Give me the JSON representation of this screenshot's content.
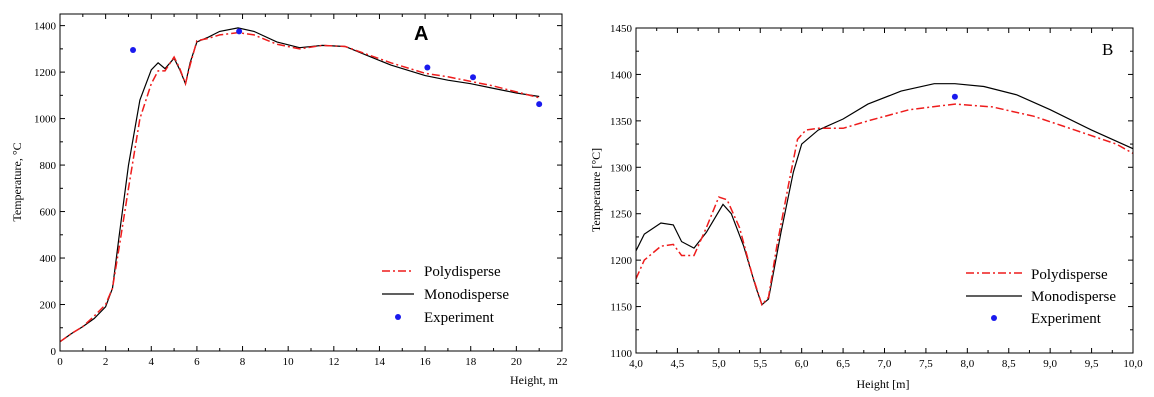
{
  "colors": {
    "polydisperse": "#ee1c1c",
    "monodisperse": "#000000",
    "experiment": "#1a1aee"
  },
  "chart_data": [
    {
      "type": "line",
      "panel_label": "A",
      "xlabel": "Height, m",
      "ylabel": "Temperature, °C",
      "xlim": [
        0,
        22
      ],
      "ylim": [
        0,
        1450
      ],
      "x_ticks": [
        "0",
        "2",
        "4",
        "6",
        "8",
        "10",
        "12",
        "14",
        "16",
        "18",
        "20",
        "22"
      ],
      "y_ticks": [
        "0",
        "200",
        "400",
        "600",
        "800",
        "1000",
        "1200",
        "1400"
      ],
      "legend_position": "bottom-right",
      "series": [
        {
          "name": "Polydisperse",
          "style": "dash-dot",
          "points": [
            [
              0,
              40
            ],
            [
              0.5,
              75
            ],
            [
              1,
              105
            ],
            [
              1.5,
              150
            ],
            [
              2,
              200
            ],
            [
              2.3,
              270
            ],
            [
              2.6,
              450
            ],
            [
              3,
              700
            ],
            [
              3.5,
              1000
            ],
            [
              4,
              1150
            ],
            [
              4.3,
              1205
            ],
            [
              4.6,
              1205
            ],
            [
              5,
              1265
            ],
            [
              5.25,
              1215
            ],
            [
              5.5,
              1150
            ],
            [
              5.7,
              1230
            ],
            [
              6,
              1335
            ],
            [
              6.5,
              1345
            ],
            [
              7,
              1360
            ],
            [
              7.8,
              1370
            ],
            [
              8.5,
              1360
            ],
            [
              9.5,
              1320
            ],
            [
              10.5,
              1300
            ],
            [
              11.5,
              1315
            ],
            [
              12.5,
              1310
            ],
            [
              13.5,
              1275
            ],
            [
              14.5,
              1240
            ],
            [
              16,
              1195
            ],
            [
              17,
              1180
            ],
            [
              18,
              1160
            ],
            [
              19,
              1140
            ],
            [
              20,
              1115
            ],
            [
              21,
              1090
            ]
          ]
        },
        {
          "name": "Monodisperse",
          "style": "solid",
          "points": [
            [
              0,
              40
            ],
            [
              0.5,
              75
            ],
            [
              1,
              105
            ],
            [
              1.5,
              140
            ],
            [
              2,
              190
            ],
            [
              2.3,
              270
            ],
            [
              2.6,
              500
            ],
            [
              3,
              800
            ],
            [
              3.5,
              1080
            ],
            [
              4,
              1210
            ],
            [
              4.3,
              1240
            ],
            [
              4.6,
              1215
            ],
            [
              5,
              1260
            ],
            [
              5.25,
              1210
            ],
            [
              5.5,
              1150
            ],
            [
              5.7,
              1240
            ],
            [
              6,
              1330
            ],
            [
              6.5,
              1350
            ],
            [
              7,
              1375
            ],
            [
              7.8,
              1390
            ],
            [
              8.5,
              1375
            ],
            [
              9.5,
              1330
            ],
            [
              10.5,
              1305
            ],
            [
              11.5,
              1315
            ],
            [
              12.5,
              1310
            ],
            [
              13.5,
              1270
            ],
            [
              14.5,
              1230
            ],
            [
              16,
              1185
            ],
            [
              17,
              1165
            ],
            [
              18,
              1150
            ],
            [
              19,
              1130
            ],
            [
              20,
              1110
            ],
            [
              21,
              1095
            ]
          ]
        },
        {
          "name": "Experiment",
          "style": "markers",
          "points": [
            [
              3.2,
              1295
            ],
            [
              7.85,
              1375
            ],
            [
              16.1,
              1220
            ],
            [
              18.1,
              1178
            ],
            [
              21,
              1062
            ]
          ]
        }
      ]
    },
    {
      "type": "line",
      "panel_label": "B",
      "xlabel": "Height [m]",
      "ylabel": "Temperature [°C]",
      "xlim": [
        4.0,
        10.0
      ],
      "ylim": [
        1100,
        1450
      ],
      "x_ticks": [
        "4,0",
        "4,5",
        "5,0",
        "5,5",
        "6,0",
        "6,5",
        "7,0",
        "7,5",
        "8,0",
        "8,5",
        "9,0",
        "9,5",
        "10,0"
      ],
      "y_ticks": [
        "1100",
        "1150",
        "1200",
        "1250",
        "1300",
        "1350",
        "1400",
        "1450"
      ],
      "legend_position": "bottom-center",
      "series": [
        {
          "name": "Polydisperse",
          "style": "dash-dot",
          "points": [
            [
              4.0,
              1180
            ],
            [
              4.1,
              1200
            ],
            [
              4.3,
              1215
            ],
            [
              4.45,
              1217
            ],
            [
              4.55,
              1205
            ],
            [
              4.7,
              1205
            ],
            [
              4.85,
              1235
            ],
            [
              5.0,
              1268
            ],
            [
              5.1,
              1265
            ],
            [
              5.25,
              1235
            ],
            [
              5.4,
              1185
            ],
            [
              5.52,
              1152
            ],
            [
              5.6,
              1160
            ],
            [
              5.7,
              1215
            ],
            [
              5.85,
              1285
            ],
            [
              5.95,
              1330
            ],
            [
              6.05,
              1340
            ],
            [
              6.2,
              1342
            ],
            [
              6.5,
              1342
            ],
            [
              6.8,
              1350
            ],
            [
              7.3,
              1362
            ],
            [
              7.85,
              1368
            ],
            [
              8.3,
              1365
            ],
            [
              8.8,
              1355
            ],
            [
              9.3,
              1340
            ],
            [
              9.8,
              1325
            ],
            [
              10.0,
              1315
            ]
          ]
        },
        {
          "name": "Monodisperse",
          "style": "solid",
          "points": [
            [
              4.0,
              1210
            ],
            [
              4.1,
              1228
            ],
            [
              4.3,
              1240
            ],
            [
              4.45,
              1238
            ],
            [
              4.55,
              1220
            ],
            [
              4.7,
              1213
            ],
            [
              4.85,
              1230
            ],
            [
              5.05,
              1260
            ],
            [
              5.15,
              1250
            ],
            [
              5.3,
              1215
            ],
            [
              5.45,
              1170
            ],
            [
              5.52,
              1152
            ],
            [
              5.6,
              1158
            ],
            [
              5.75,
              1230
            ],
            [
              5.9,
              1295
            ],
            [
              6.0,
              1325
            ],
            [
              6.2,
              1340
            ],
            [
              6.5,
              1352
            ],
            [
              6.8,
              1368
            ],
            [
              7.2,
              1382
            ],
            [
              7.6,
              1390
            ],
            [
              7.85,
              1390
            ],
            [
              8.2,
              1387
            ],
            [
              8.6,
              1378
            ],
            [
              9.0,
              1362
            ],
            [
              9.5,
              1340
            ],
            [
              10.0,
              1320
            ]
          ]
        },
        {
          "name": "Experiment",
          "style": "markers",
          "points": [
            [
              7.85,
              1376
            ]
          ]
        }
      ]
    }
  ]
}
